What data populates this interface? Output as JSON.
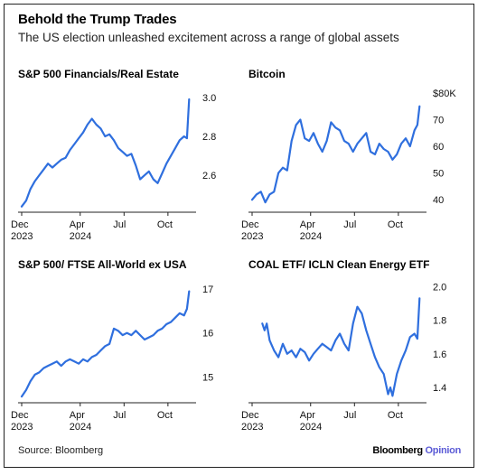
{
  "header": {
    "title": "Behold the Trump Trades",
    "subtitle": "The US election unleashed excitement across a range of global assets"
  },
  "footer": {
    "source": "Source: Bloomberg",
    "brand_main": "Bloomberg",
    "brand_accent": "Opinion"
  },
  "colors": {
    "line": "#2f6fde",
    "axis": "#222222"
  },
  "chart_data": [
    {
      "type": "line",
      "title": "S&P 500 Financials/Real Estate",
      "xlabel": "",
      "ylabel": "",
      "x_ticks": [
        {
          "line1": "Dec",
          "line2": "2023",
          "t": 0
        },
        {
          "line1": "Apr",
          "line2": "2024",
          "t": 4
        },
        {
          "line1": "Jul",
          "line2": "",
          "t": 7
        },
        {
          "line1": "Oct",
          "line2": "",
          "t": 10
        }
      ],
      "y_ticks": [
        {
          "label": "2.6",
          "v": 2.6
        },
        {
          "label": "2.8",
          "v": 2.8
        },
        {
          "label": "3.0",
          "v": 3.0
        }
      ],
      "ylim": [
        2.42,
        3.05
      ],
      "xlim": [
        0,
        11.8
      ],
      "series": [
        {
          "name": "",
          "points": [
            [
              0,
              2.44
            ],
            [
              0.3,
              2.47
            ],
            [
              0.6,
              2.53
            ],
            [
              0.9,
              2.57
            ],
            [
              1.2,
              2.6
            ],
            [
              1.5,
              2.63
            ],
            [
              1.8,
              2.66
            ],
            [
              2.1,
              2.64
            ],
            [
              2.4,
              2.66
            ],
            [
              2.7,
              2.68
            ],
            [
              3.0,
              2.69
            ],
            [
              3.3,
              2.73
            ],
            [
              3.6,
              2.76
            ],
            [
              3.9,
              2.79
            ],
            [
              4.2,
              2.82
            ],
            [
              4.5,
              2.86
            ],
            [
              4.8,
              2.89
            ],
            [
              5.1,
              2.86
            ],
            [
              5.4,
              2.84
            ],
            [
              5.7,
              2.8
            ],
            [
              6.0,
              2.81
            ],
            [
              6.3,
              2.78
            ],
            [
              6.6,
              2.74
            ],
            [
              6.9,
              2.72
            ],
            [
              7.2,
              2.7
            ],
            [
              7.5,
              2.71
            ],
            [
              7.8,
              2.65
            ],
            [
              8.1,
              2.58
            ],
            [
              8.4,
              2.6
            ],
            [
              8.7,
              2.62
            ],
            [
              9.0,
              2.58
            ],
            [
              9.3,
              2.56
            ],
            [
              9.6,
              2.61
            ],
            [
              9.9,
              2.66
            ],
            [
              10.2,
              2.7
            ],
            [
              10.5,
              2.74
            ],
            [
              10.8,
              2.78
            ],
            [
              11.1,
              2.8
            ],
            [
              11.3,
              2.79
            ],
            [
              11.45,
              2.99
            ]
          ]
        }
      ]
    },
    {
      "type": "line",
      "title": "Bitcoin",
      "xlabel": "",
      "ylabel": "",
      "x_ticks": [
        {
          "line1": "Dec",
          "line2": "2023",
          "t": 0
        },
        {
          "line1": "Apr",
          "line2": "2024",
          "t": 4
        },
        {
          "line1": "Jul",
          "line2": "",
          "t": 7
        },
        {
          "line1": "Oct",
          "line2": "",
          "t": 10
        }
      ],
      "y_ticks": [
        {
          "label": "40",
          "v": 40
        },
        {
          "label": "50",
          "v": 50
        },
        {
          "label": "60",
          "v": 60
        },
        {
          "label": "70",
          "v": 70
        },
        {
          "label": "$80K",
          "v": 80
        }
      ],
      "ylim": [
        36,
        82
      ],
      "xlim": [
        0,
        11.8
      ],
      "series": [
        {
          "name": "",
          "points": [
            [
              0,
              40
            ],
            [
              0.3,
              42
            ],
            [
              0.6,
              43
            ],
            [
              0.9,
              39
            ],
            [
              1.2,
              42
            ],
            [
              1.5,
              43
            ],
            [
              1.8,
              50
            ],
            [
              2.1,
              52
            ],
            [
              2.4,
              51
            ],
            [
              2.7,
              62
            ],
            [
              3.0,
              68
            ],
            [
              3.3,
              70
            ],
            [
              3.6,
              63
            ],
            [
              3.9,
              62
            ],
            [
              4.2,
              65
            ],
            [
              4.5,
              61
            ],
            [
              4.8,
              58
            ],
            [
              5.1,
              62
            ],
            [
              5.4,
              69
            ],
            [
              5.7,
              67
            ],
            [
              6.0,
              66
            ],
            [
              6.3,
              62
            ],
            [
              6.6,
              61
            ],
            [
              6.9,
              58
            ],
            [
              7.2,
              61
            ],
            [
              7.5,
              63
            ],
            [
              7.8,
              65
            ],
            [
              8.1,
              58
            ],
            [
              8.4,
              57
            ],
            [
              8.7,
              61
            ],
            [
              9.0,
              59
            ],
            [
              9.3,
              58
            ],
            [
              9.6,
              55
            ],
            [
              9.9,
              57
            ],
            [
              10.2,
              61
            ],
            [
              10.5,
              63
            ],
            [
              10.8,
              60
            ],
            [
              11.1,
              66
            ],
            [
              11.3,
              68
            ],
            [
              11.45,
              75
            ]
          ]
        }
      ]
    },
    {
      "type": "line",
      "title": "S&P 500/ FTSE All-World ex USA",
      "xlabel": "",
      "ylabel": "",
      "x_ticks": [
        {
          "line1": "Dec",
          "line2": "2023",
          "t": 0
        },
        {
          "line1": "Apr",
          "line2": "2024",
          "t": 4
        },
        {
          "line1": "Jul",
          "line2": "",
          "t": 7
        },
        {
          "line1": "Oct",
          "line2": "",
          "t": 10
        }
      ],
      "y_ticks": [
        {
          "label": "15",
          "v": 15
        },
        {
          "label": "16",
          "v": 16
        },
        {
          "label": "17",
          "v": 17
        }
      ],
      "ylim": [
        14.45,
        17.25
      ],
      "xlim": [
        0,
        11.8
      ],
      "series": [
        {
          "name": "",
          "points": [
            [
              0,
              14.55
            ],
            [
              0.3,
              14.7
            ],
            [
              0.6,
              14.9
            ],
            [
              0.9,
              15.05
            ],
            [
              1.2,
              15.1
            ],
            [
              1.5,
              15.2
            ],
            [
              1.8,
              15.25
            ],
            [
              2.1,
              15.3
            ],
            [
              2.4,
              15.35
            ],
            [
              2.7,
              15.25
            ],
            [
              3.0,
              15.35
            ],
            [
              3.3,
              15.4
            ],
            [
              3.6,
              15.35
            ],
            [
              3.9,
              15.3
            ],
            [
              4.2,
              15.4
            ],
            [
              4.5,
              15.35
            ],
            [
              4.8,
              15.45
            ],
            [
              5.1,
              15.5
            ],
            [
              5.4,
              15.6
            ],
            [
              5.7,
              15.7
            ],
            [
              6.0,
              15.75
            ],
            [
              6.3,
              16.1
            ],
            [
              6.6,
              16.05
            ],
            [
              6.9,
              15.95
            ],
            [
              7.2,
              16.0
            ],
            [
              7.5,
              15.95
            ],
            [
              7.8,
              16.05
            ],
            [
              8.1,
              15.95
            ],
            [
              8.4,
              15.85
            ],
            [
              8.7,
              15.9
            ],
            [
              9.0,
              15.95
            ],
            [
              9.3,
              16.05
            ],
            [
              9.6,
              16.1
            ],
            [
              9.9,
              16.2
            ],
            [
              10.2,
              16.25
            ],
            [
              10.5,
              16.35
            ],
            [
              10.8,
              16.45
            ],
            [
              11.1,
              16.4
            ],
            [
              11.3,
              16.55
            ],
            [
              11.45,
              16.95
            ]
          ]
        }
      ]
    },
    {
      "type": "line",
      "title": "COAL ETF/ ICLN Clean Energy ETF",
      "xlabel": "",
      "ylabel": "",
      "x_ticks": [
        {
          "line1": "Dec",
          "line2": "2023",
          "t": 0
        },
        {
          "line1": "Apr",
          "line2": "2024",
          "t": 4
        },
        {
          "line1": "Jul",
          "line2": "",
          "t": 7
        },
        {
          "line1": "Oct",
          "line2": "",
          "t": 10
        }
      ],
      "y_ticks": [
        {
          "label": "1.4",
          "v": 1.4
        },
        {
          "label": "1.6",
          "v": 1.6
        },
        {
          "label": "1.8",
          "v": 1.8
        },
        {
          "label": "2.0",
          "v": 2.0
        }
      ],
      "ylim": [
        1.32,
        2.05
      ],
      "xlim": [
        0,
        11.8
      ],
      "series": [
        {
          "name": "",
          "points": [
            [
              0.7,
              1.78
            ],
            [
              0.85,
              1.74
            ],
            [
              1.0,
              1.78
            ],
            [
              1.2,
              1.68
            ],
            [
              1.5,
              1.62
            ],
            [
              1.8,
              1.58
            ],
            [
              2.1,
              1.66
            ],
            [
              2.4,
              1.6
            ],
            [
              2.7,
              1.62
            ],
            [
              3.0,
              1.58
            ],
            [
              3.3,
              1.63
            ],
            [
              3.6,
              1.61
            ],
            [
              3.9,
              1.56
            ],
            [
              4.2,
              1.6
            ],
            [
              4.5,
              1.63
            ],
            [
              4.8,
              1.66
            ],
            [
              5.1,
              1.64
            ],
            [
              5.4,
              1.62
            ],
            [
              5.7,
              1.68
            ],
            [
              6.0,
              1.72
            ],
            [
              6.3,
              1.66
            ],
            [
              6.6,
              1.62
            ],
            [
              6.9,
              1.78
            ],
            [
              7.2,
              1.88
            ],
            [
              7.5,
              1.84
            ],
            [
              7.8,
              1.74
            ],
            [
              8.1,
              1.66
            ],
            [
              8.4,
              1.58
            ],
            [
              8.7,
              1.52
            ],
            [
              9.0,
              1.48
            ],
            [
              9.3,
              1.36
            ],
            [
              9.45,
              1.4
            ],
            [
              9.6,
              1.35
            ],
            [
              9.9,
              1.48
            ],
            [
              10.2,
              1.56
            ],
            [
              10.5,
              1.62
            ],
            [
              10.8,
              1.7
            ],
            [
              11.1,
              1.72
            ],
            [
              11.3,
              1.69
            ],
            [
              11.45,
              1.93
            ]
          ]
        }
      ]
    }
  ]
}
